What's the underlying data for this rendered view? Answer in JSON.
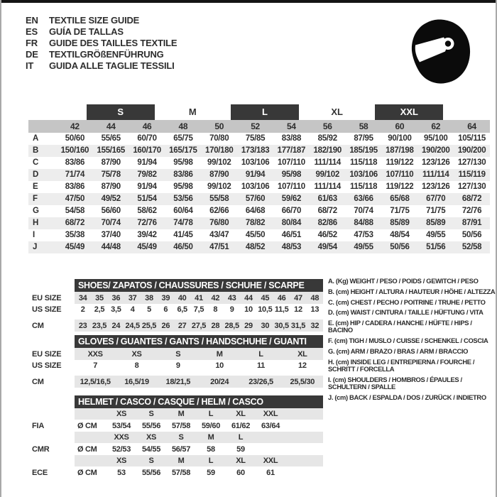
{
  "header": {
    "languages": [
      {
        "code": "EN",
        "title": "TEXTILE SIZE GUIDE"
      },
      {
        "code": "ES",
        "title": "GUÍA DE TALLAS"
      },
      {
        "code": "FR",
        "title": "GUIDE DES TAILLES TEXTILE"
      },
      {
        "code": "DE",
        "title": "TEXTILGRÖßENFÜHRUNG"
      },
      {
        "code": "IT",
        "title": "GUIDA ALLE TAGLIE TESSILI"
      }
    ],
    "logo_icon": "racing-helmet"
  },
  "size_table": {
    "size_groups": [
      {
        "label": "S",
        "dark": true,
        "col": 3
      },
      {
        "label": "M",
        "dark": false,
        "col": 5
      },
      {
        "label": "L",
        "dark": true,
        "col": 7
      },
      {
        "label": "XL",
        "dark": false,
        "col": 9
      },
      {
        "label": "XXL",
        "dark": true,
        "col": 11
      }
    ],
    "sizes": [
      "42",
      "44",
      "46",
      "48",
      "50",
      "52",
      "54",
      "56",
      "58",
      "60",
      "62",
      "64"
    ],
    "rows": [
      {
        "label": "A",
        "values": [
          "50/60",
          "55/65",
          "60/70",
          "65/75",
          "70/80",
          "75/85",
          "83/88",
          "85/92",
          "87/95",
          "90/100",
          "95/100",
          "105/115"
        ]
      },
      {
        "label": "B",
        "values": [
          "150/160",
          "155/165",
          "160/170",
          "165/175",
          "170/180",
          "173/183",
          "177/187",
          "182/190",
          "185/195",
          "187/198",
          "190/200",
          "190/200"
        ]
      },
      {
        "label": "C",
        "values": [
          "83/86",
          "87/90",
          "91/94",
          "95/98",
          "99/102",
          "103/106",
          "107/110",
          "111/114",
          "115/118",
          "119/122",
          "123/126",
          "127/130"
        ]
      },
      {
        "label": "D",
        "values": [
          "71/74",
          "75/78",
          "79/82",
          "83/86",
          "87/90",
          "91/94",
          "95/98",
          "99/102",
          "103/106",
          "107/110",
          "111/114",
          "115/119"
        ]
      },
      {
        "label": "E",
        "values": [
          "83/86",
          "87/90",
          "91/94",
          "95/98",
          "99/102",
          "103/106",
          "107/110",
          "111/114",
          "115/118",
          "119/122",
          "123/126",
          "127/130"
        ]
      },
      {
        "label": "F",
        "values": [
          "47/50",
          "49/52",
          "51/54",
          "53/56",
          "55/58",
          "57/60",
          "59/62",
          "61/63",
          "63/66",
          "65/68",
          "67/70",
          "68/72"
        ]
      },
      {
        "label": "G",
        "values": [
          "54/58",
          "56/60",
          "58/62",
          "60/64",
          "62/66",
          "64/68",
          "66/70",
          "68/72",
          "70/74",
          "71/75",
          "71/75",
          "72/76"
        ]
      },
      {
        "label": "H",
        "values": [
          "68/72",
          "70/74",
          "72/76",
          "74/78",
          "76/80",
          "78/82",
          "80/84",
          "82/86",
          "84/88",
          "85/89",
          "85/89",
          "87/91"
        ]
      },
      {
        "label": "I",
        "values": [
          "35/38",
          "37/40",
          "39/42",
          "41/45",
          "43/47",
          "45/50",
          "46/51",
          "46/52",
          "47/53",
          "48/54",
          "49/55",
          "50/56"
        ]
      },
      {
        "label": "J",
        "values": [
          "45/49",
          "44/48",
          "45/49",
          "46/50",
          "47/51",
          "48/52",
          "48/53",
          "49/54",
          "49/55",
          "50/56",
          "51/56",
          "52/58"
        ]
      }
    ]
  },
  "shoes": {
    "title": "SHOES/ ZAPATOS / CHAUSSURES / SCHUHE / SCARPE",
    "rows": [
      {
        "label": "EU SIZE",
        "band": true,
        "gap": false,
        "values": [
          "34",
          "35",
          "36",
          "37",
          "38",
          "39",
          "40",
          "41",
          "42",
          "43",
          "44",
          "45",
          "46",
          "47",
          "48"
        ]
      },
      {
        "label": "US SIZE",
        "band": false,
        "gap": false,
        "values": [
          "2",
          "2,5",
          "3,5",
          "4",
          "5",
          "6",
          "6,5",
          "7,5",
          "8",
          "9",
          "10",
          "10,5",
          "11,5",
          "12",
          "13"
        ]
      },
      {
        "label": "CM",
        "band": true,
        "gap": true,
        "values": [
          "23",
          "23,5",
          "24",
          "24,5",
          "25,5",
          "26",
          "27",
          "27,5",
          "28",
          "28,5",
          "29",
          "30",
          "30,5",
          "31,5",
          "32"
        ]
      }
    ]
  },
  "gloves": {
    "title": "GLOVES / GUANTES / GANTS / HANDSCHUHE / GUANTI",
    "rows": [
      {
        "label": "EU SIZE",
        "band": true,
        "gap": false,
        "values": [
          "XXS",
          "XS",
          "S",
          "M",
          "L",
          "XL"
        ]
      },
      {
        "label": "US SIZE",
        "band": false,
        "gap": false,
        "values": [
          "7",
          "8",
          "9",
          "10",
          "11",
          "12"
        ]
      },
      {
        "label": "CM",
        "band": true,
        "gap": true,
        "values": [
          "12,5/16,5",
          "16,5/19",
          "18/21,5",
          "20/24",
          "23/26,5",
          "25,5/30"
        ]
      }
    ]
  },
  "helmet": {
    "title": "HELMET / CASCO / CASQUE / HELM / CASCO",
    "diameter_label": "Ø CM",
    "groups": [
      {
        "label": "FIA",
        "sizes": [
          "XS",
          "S",
          "M",
          "L",
          "XL",
          "XXL"
        ],
        "values": [
          "53/54",
          "55/56",
          "57/58",
          "59/60",
          "61/62",
          "63/64"
        ]
      },
      {
        "label": "CMR",
        "sizes": [
          "XXS",
          "XS",
          "S",
          "M",
          "L",
          ""
        ],
        "values": [
          "52/53",
          "54/55",
          "56/57",
          "58",
          "59",
          ""
        ]
      },
      {
        "label": "ECE",
        "sizes": [
          "XS",
          "S",
          "M",
          "L",
          "XL",
          "XXL"
        ],
        "values": [
          "53",
          "55/56",
          "57/58",
          "59",
          "60",
          "61"
        ]
      }
    ]
  },
  "legend": {
    "items": [
      {
        "key": "A.",
        "unit": "(Kg)",
        "text": "WEIGHT / PESO / POIDS / GEWITCH / PESO"
      },
      {
        "key": "B.",
        "unit": "(cm)",
        "text": "HEIGHT / ALTURA / HAUTEUR / HÖHE / ALTEZZA"
      },
      {
        "key": "C.",
        "unit": "(cm)",
        "text": "CHEST / PECHO / POITRINE / TRUHE / PETTO"
      },
      {
        "key": "D.",
        "unit": "(cm)",
        "text": "WAIST / CINTURA / TAILLE / HÜFTUNG / VITA"
      },
      {
        "key": "E.",
        "unit": "(cm)",
        "text": "HIP / CADERA / HANCHE / HÜFTE / HIPS / BACINO"
      },
      {
        "key": "F.",
        "unit": "(cm)",
        "text": "TIGH / MUSLO / CUISSE / SCHENKEL / COSCIA"
      },
      {
        "key": "G.",
        "unit": "(cm)",
        "text": "ARM / BRAZO / BRAS / ARM / BRACCIO"
      },
      {
        "key": "H.",
        "unit": "(cm)",
        "text": "INSIDE LEG / ENTREPIERNA / FOURCHE / SCHRITT / FORCELLA"
      },
      {
        "key": "I.",
        "unit": "(cm)",
        "text": "SHOULDERS / HOMBROS / ÉPAULES / SCHULTERN / SPALLE"
      },
      {
        "key": "J.",
        "unit": "(cm)",
        "text": "BACK / ESPALDA / DOS / ZURÜCK / INDIETRO"
      }
    ]
  },
  "colors": {
    "dark_bar": "#383838",
    "size_band": "#c5c5c5",
    "row_stripe": "#ededed",
    "light_band": "#e6e6e6",
    "text": "#2e2e2e"
  }
}
